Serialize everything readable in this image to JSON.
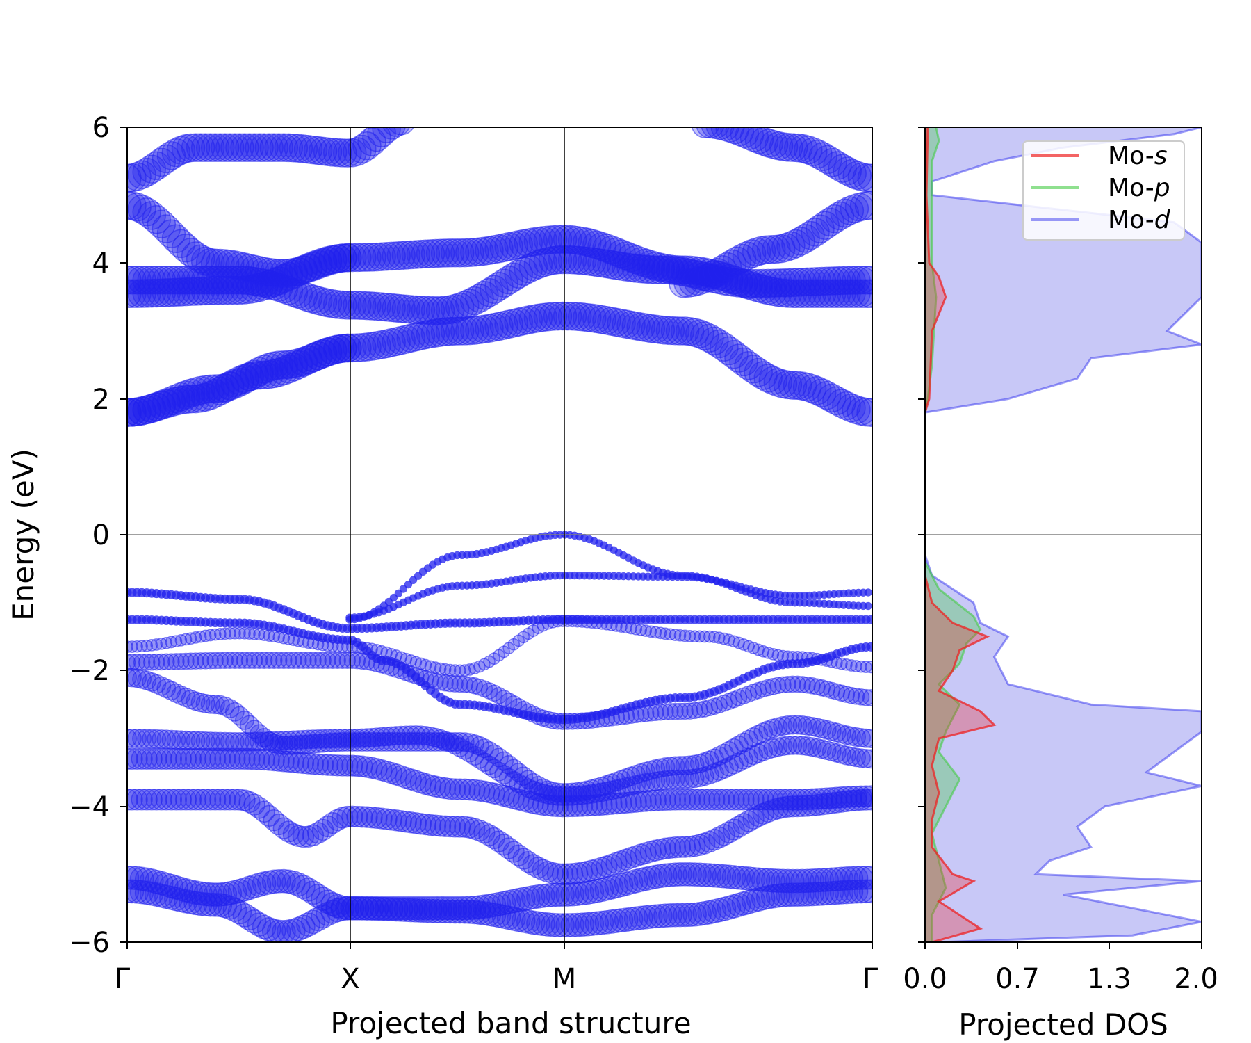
{
  "colors": {
    "s": "#ee2222",
    "p": "#44cc44",
    "d": "#2222ee",
    "d_fill": "#c5c5f7",
    "axis": "#000000",
    "fermi": "#808080"
  },
  "chart_data": [
    {
      "type": "scatter",
      "title": "",
      "xlabel": "Projected band structure",
      "ylabel": "Energy (eV)",
      "ylim": [
        -6,
        6
      ],
      "yticks": [
        -6,
        -4,
        -2,
        0,
        2,
        4,
        6
      ],
      "ytick_labels": [
        "−6",
        "−4",
        "−2",
        "0",
        "2",
        "4",
        "6"
      ],
      "kpoints": [
        {
          "label": "Γ",
          "pos": 0.0
        },
        {
          "label": "X",
          "pos": 1.0
        },
        {
          "label": "M",
          "pos": 1.96
        },
        {
          "label": "Γ",
          "pos": 3.35
        }
      ],
      "fermi_level": 0,
      "series": [
        {
          "name": "cb1",
          "size": 1,
          "values": [
            [
              0,
              1.8
            ],
            [
              0.3,
              2.0
            ],
            [
              0.6,
              2.35
            ],
            [
              1.0,
              2.75
            ],
            [
              1.5,
              3.0
            ],
            [
              1.96,
              3.22
            ],
            [
              2.5,
              3.0
            ],
            [
              3.0,
              2.2
            ],
            [
              3.35,
              1.8
            ]
          ]
        },
        {
          "name": "cb1b",
          "size": 1,
          "values": [
            [
              0,
              1.8
            ],
            [
              0.4,
              2.15
            ],
            [
              0.7,
              2.5
            ],
            [
              1.0,
              2.75
            ]
          ]
        },
        {
          "name": "cb2",
          "size": 1,
          "values": [
            [
              0,
              3.75
            ],
            [
              0.5,
              3.75
            ],
            [
              1.0,
              3.38
            ],
            [
              1.4,
              3.3
            ],
            [
              1.96,
              4.05
            ],
            [
              2.4,
              3.9
            ],
            [
              2.8,
              3.7
            ],
            [
              3.35,
              3.75
            ]
          ]
        },
        {
          "name": "cb3",
          "size": 1,
          "values": [
            [
              0,
              3.55
            ],
            [
              0.5,
              3.6
            ],
            [
              1.0,
              4.08
            ],
            [
              1.5,
              4.15
            ],
            [
              1.96,
              4.35
            ],
            [
              2.5,
              3.9
            ],
            [
              3.0,
              3.55
            ],
            [
              3.35,
              3.55
            ]
          ]
        },
        {
          "name": "cb4",
          "size": 1,
          "values": [
            [
              0,
              4.85
            ],
            [
              0.4,
              4.0
            ],
            [
              0.7,
              3.85
            ],
            [
              1.0,
              4.08
            ]
          ]
        },
        {
          "name": "cb4b",
          "size": 1,
          "values": [
            [
              2.5,
              3.7
            ],
            [
              2.9,
              4.2
            ],
            [
              3.35,
              4.85
            ]
          ]
        },
        {
          "name": "cb5",
          "size": 1,
          "values": [
            [
              0,
              5.25
            ],
            [
              0.3,
              5.7
            ],
            [
              0.7,
              5.7
            ],
            [
              1.0,
              5.62
            ],
            [
              1.25,
              6.1
            ]
          ]
        },
        {
          "name": "cb5b",
          "size": 1,
          "values": [
            [
              2.6,
              6.05
            ],
            [
              3.0,
              5.7
            ],
            [
              3.35,
              5.25
            ]
          ]
        },
        {
          "name": "vb1",
          "size": 0.15,
          "values": [
            [
              1.0,
              -1.25
            ],
            [
              1.5,
              -0.3
            ],
            [
              1.96,
              0.0
            ],
            [
              2.5,
              -0.6
            ],
            [
              3.0,
              -1.0
            ],
            [
              3.35,
              -1.05
            ]
          ]
        },
        {
          "name": "vb2",
          "size": 0.15,
          "values": [
            [
              1.0,
              -1.22
            ],
            [
              1.5,
              -0.75
            ],
            [
              1.96,
              -0.6
            ],
            [
              2.5,
              -0.62
            ],
            [
              3.0,
              -0.9
            ],
            [
              3.35,
              -0.85
            ]
          ]
        },
        {
          "name": "vb3",
          "size": 0.2,
          "values": [
            [
              0,
              -0.85
            ],
            [
              0.5,
              -0.95
            ],
            [
              1.0,
              -1.38
            ],
            [
              1.5,
              -1.3
            ],
            [
              1.96,
              -1.25
            ],
            [
              2.5,
              -1.25
            ],
            [
              3.35,
              -1.25
            ]
          ]
        },
        {
          "name": "vb4",
          "size": 0.2,
          "values": [
            [
              0,
              -1.25
            ],
            [
              0.5,
              -1.3
            ],
            [
              1.0,
              -1.55
            ],
            [
              1.15,
              -1.85
            ],
            [
              1.5,
              -2.5
            ],
            [
              1.96,
              -2.72
            ],
            [
              2.5,
              -2.4
            ],
            [
              3.0,
              -1.9
            ],
            [
              3.35,
              -1.65
            ]
          ]
        },
        {
          "name": "vb5",
          "size": 0.3,
          "values": [
            [
              0,
              -1.65
            ],
            [
              0.5,
              -1.45
            ],
            [
              1.0,
              -1.65
            ],
            [
              1.5,
              -2.0
            ],
            [
              1.96,
              -1.27
            ],
            [
              2.6,
              -1.5
            ],
            [
              3.0,
              -1.8
            ],
            [
              3.35,
              -1.95
            ]
          ]
        },
        {
          "name": "vb6",
          "size": 0.5,
          "values": [
            [
              0,
              -1.88
            ],
            [
              0.5,
              -1.85
            ],
            [
              1.0,
              -1.85
            ],
            [
              1.5,
              -2.2
            ],
            [
              1.96,
              -2.75
            ],
            [
              2.5,
              -2.6
            ],
            [
              3.0,
              -2.2
            ],
            [
              3.35,
              -2.4
            ]
          ]
        },
        {
          "name": "vb7",
          "size": 0.6,
          "values": [
            [
              0,
              -2.1
            ],
            [
              0.4,
              -2.5
            ],
            [
              0.7,
              -3.1
            ],
            [
              1.0,
              -3.05
            ],
            [
              1.5,
              -3.05
            ],
            [
              1.96,
              -3.8
            ],
            [
              2.5,
              -3.4
            ],
            [
              3.0,
              -2.8
            ],
            [
              3.35,
              -3.0
            ]
          ]
        },
        {
          "name": "vb8",
          "size": 0.6,
          "values": [
            [
              0,
              -3.0
            ],
            [
              0.5,
              -3.05
            ],
            [
              1.0,
              -3.0
            ],
            [
              1.3,
              -2.95
            ],
            [
              1.96,
              -3.85
            ],
            [
              2.5,
              -3.6
            ],
            [
              3.0,
              -3.1
            ],
            [
              3.35,
              -3.3
            ]
          ]
        },
        {
          "name": "vb9",
          "size": 0.7,
          "values": [
            [
              0,
              -3.3
            ],
            [
              0.5,
              -3.3
            ],
            [
              1.0,
              -3.4
            ],
            [
              1.5,
              -3.75
            ],
            [
              1.96,
              -4.0
            ],
            [
              2.5,
              -3.9
            ],
            [
              3.0,
              -3.9
            ],
            [
              3.35,
              -3.85
            ]
          ]
        },
        {
          "name": "vb10",
          "size": 0.7,
          "values": [
            [
              0,
              -3.9
            ],
            [
              0.5,
              -3.9
            ],
            [
              0.8,
              -4.45
            ],
            [
              1.0,
              -4.15
            ],
            [
              1.5,
              -4.3
            ],
            [
              1.96,
              -5.0
            ],
            [
              2.5,
              -4.6
            ],
            [
              3.0,
              -4.0
            ],
            [
              3.35,
              -3.9
            ]
          ]
        },
        {
          "name": "vb11",
          "size": 0.8,
          "values": [
            [
              0,
              -5.05
            ],
            [
              0.4,
              -5.3
            ],
            [
              0.7,
              -5.1
            ],
            [
              1.0,
              -5.5
            ],
            [
              1.5,
              -5.5
            ],
            [
              1.96,
              -5.3
            ],
            [
              2.5,
              -5.0
            ],
            [
              3.0,
              -5.1
            ],
            [
              3.35,
              -5.05
            ]
          ]
        },
        {
          "name": "vb12",
          "size": 0.8,
          "values": [
            [
              0,
              -5.25
            ],
            [
              0.4,
              -5.45
            ],
            [
              0.7,
              -5.85
            ],
            [
              1.0,
              -5.5
            ],
            [
              1.5,
              -5.55
            ],
            [
              1.96,
              -5.75
            ],
            [
              2.5,
              -5.6
            ],
            [
              3.0,
              -5.3
            ],
            [
              3.35,
              -5.25
            ]
          ]
        }
      ]
    },
    {
      "type": "area",
      "title": "",
      "xlabel": "Projected DOS",
      "ylabel": "",
      "xlim": [
        0.0,
        2.0
      ],
      "ylim": [
        -6,
        6
      ],
      "xticks": [
        0.0,
        0.67,
        1.33,
        2.0
      ],
      "xtick_labels": [
        "0.0",
        "0.7",
        "1.3",
        "2.0"
      ],
      "legend": {
        "position": "top-right",
        "entries": [
          {
            "prefix": "Mo-",
            "orbital": "s"
          },
          {
            "prefix": "Mo-",
            "orbital": "p"
          },
          {
            "prefix": "Mo-",
            "orbital": "d"
          }
        ]
      },
      "series": [
        {
          "name": "Mo-s",
          "values": [
            [
              6.0,
              0.02
            ],
            [
              5.0,
              0.01
            ],
            [
              4.0,
              0.03
            ],
            [
              3.8,
              0.1
            ],
            [
              3.5,
              0.15
            ],
            [
              3.0,
              0.05
            ],
            [
              2.0,
              0.03
            ],
            [
              1.8,
              0.0
            ],
            [
              -0.6,
              0.0
            ],
            [
              -1.0,
              0.05
            ],
            [
              -1.3,
              0.2
            ],
            [
              -1.5,
              0.45
            ],
            [
              -1.7,
              0.25
            ],
            [
              -2.0,
              0.2
            ],
            [
              -2.3,
              0.1
            ],
            [
              -2.6,
              0.4
            ],
            [
              -2.8,
              0.5
            ],
            [
              -3.0,
              0.1
            ],
            [
              -3.4,
              0.05
            ],
            [
              -3.8,
              0.1
            ],
            [
              -4.2,
              0.05
            ],
            [
              -4.6,
              0.05
            ],
            [
              -5.0,
              0.2
            ],
            [
              -5.1,
              0.35
            ],
            [
              -5.4,
              0.1
            ],
            [
              -5.8,
              0.4
            ],
            [
              -6.0,
              0.05
            ]
          ]
        },
        {
          "name": "Mo-p",
          "values": [
            [
              6.0,
              0.08
            ],
            [
              5.8,
              0.1
            ],
            [
              5.5,
              0.05
            ],
            [
              4.5,
              0.05
            ],
            [
              4.0,
              0.05
            ],
            [
              3.5,
              0.08
            ],
            [
              2.5,
              0.05
            ],
            [
              2.0,
              0.02
            ],
            [
              1.8,
              0.0
            ],
            [
              -0.4,
              0.0
            ],
            [
              -0.8,
              0.1
            ],
            [
              -1.2,
              0.35
            ],
            [
              -1.4,
              0.4
            ],
            [
              -1.6,
              0.3
            ],
            [
              -1.9,
              0.25
            ],
            [
              -2.2,
              0.1
            ],
            [
              -2.5,
              0.25
            ],
            [
              -2.9,
              0.15
            ],
            [
              -3.2,
              0.1
            ],
            [
              -3.6,
              0.25
            ],
            [
              -4.0,
              0.15
            ],
            [
              -4.4,
              0.05
            ],
            [
              -4.8,
              0.1
            ],
            [
              -5.2,
              0.15
            ],
            [
              -5.6,
              0.05
            ],
            [
              -6.0,
              0.05
            ]
          ]
        },
        {
          "name": "Mo-d",
          "values": [
            [
              6.0,
              2.0
            ],
            [
              5.9,
              1.8
            ],
            [
              5.7,
              1.0
            ],
            [
              5.5,
              0.5
            ],
            [
              5.2,
              0.05
            ],
            [
              5.0,
              0.05
            ],
            [
              4.85,
              0.7
            ],
            [
              4.6,
              1.8
            ],
            [
              4.3,
              2.0
            ],
            [
              4.0,
              2.0
            ],
            [
              3.5,
              2.0
            ],
            [
              3.0,
              1.75
            ],
            [
              2.8,
              2.0
            ],
            [
              2.6,
              1.2
            ],
            [
              2.3,
              1.1
            ],
            [
              2.0,
              0.6
            ],
            [
              1.8,
              0.0
            ],
            [
              -0.3,
              0.0
            ],
            [
              -0.6,
              0.05
            ],
            [
              -1.0,
              0.35
            ],
            [
              -1.3,
              0.4
            ],
            [
              -1.5,
              0.6
            ],
            [
              -1.8,
              0.5
            ],
            [
              -2.2,
              0.6
            ],
            [
              -2.5,
              1.2
            ],
            [
              -2.6,
              2.0
            ],
            [
              -2.9,
              2.0
            ],
            [
              -3.2,
              1.8
            ],
            [
              -3.5,
              1.6
            ],
            [
              -3.7,
              2.0
            ],
            [
              -4.0,
              1.3
            ],
            [
              -4.3,
              1.1
            ],
            [
              -4.6,
              1.2
            ],
            [
              -4.8,
              0.9
            ],
            [
              -5.0,
              0.8
            ],
            [
              -5.1,
              2.0
            ],
            [
              -5.3,
              1.0
            ],
            [
              -5.7,
              2.0
            ],
            [
              -5.9,
              1.5
            ],
            [
              -6.0,
              0.1
            ]
          ]
        }
      ]
    }
  ]
}
